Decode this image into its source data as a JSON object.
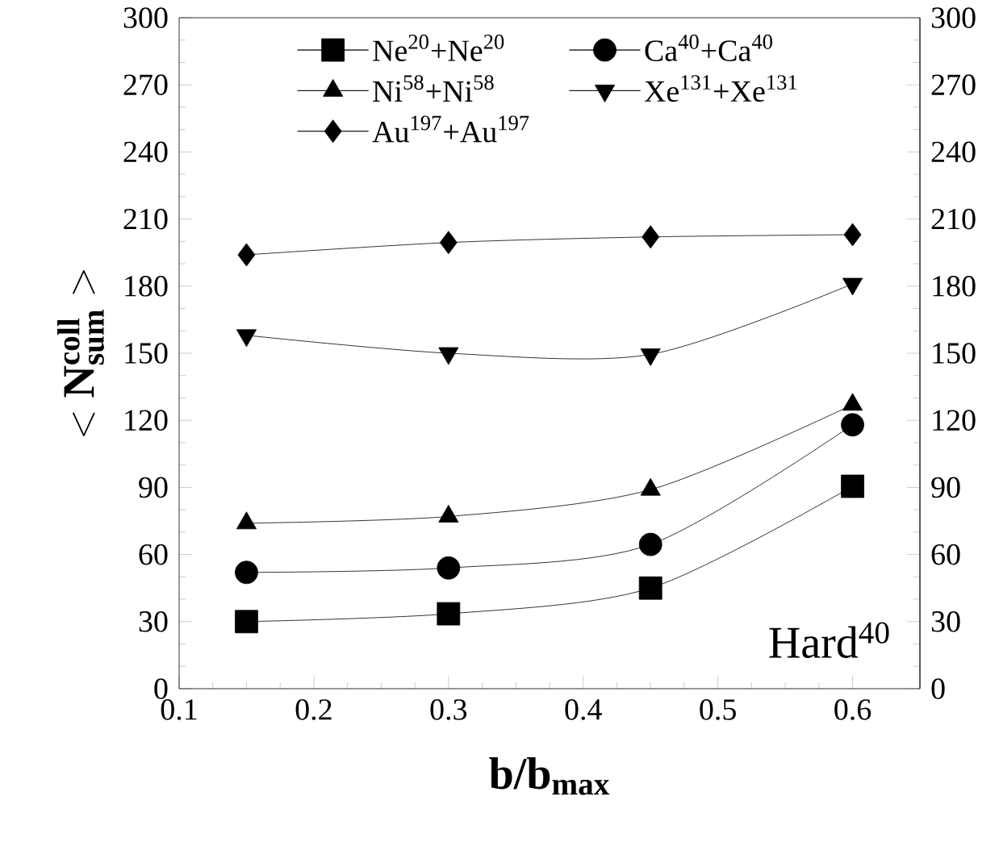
{
  "chart_data": {
    "type": "line",
    "xlabel": "b/b$_{max}$",
    "ylabel": "<\\mathbf{N}^{\\mathbf{coll}}_{\\mathbf{sum}}>",
    "x": [
      0.15,
      0.3,
      0.45,
      0.6
    ],
    "series": [
      {
        "name": "Ne$^{20}$+Ne$^{20}$",
        "color": "#000000",
        "marker": "square",
        "values": [
          30,
          33.5,
          45,
          90.5
        ]
      },
      {
        "name": "Ca$^{40}$+Ca$^{40}$",
        "color": "#000000",
        "marker": "circle",
        "values": [
          52,
          54,
          64.5,
          118
        ]
      },
      {
        "name": "Ni$^{58}$+Ni$^{58}$",
        "color": "#000000",
        "marker": "triangle",
        "values": [
          74,
          77,
          89,
          127
        ]
      },
      {
        "name": "Xe$^{131}$+Xe$^{131}$",
        "color": "#000000",
        "marker": "triangle-down",
        "values": [
          158,
          150,
          149.5,
          181
        ]
      },
      {
        "name": "Au$^{197}$+Au$^{197}$",
        "color": "#000000",
        "marker": "diamond",
        "values": [
          194,
          199.5,
          202,
          203
        ]
      }
    ],
    "xlim": [
      0.1,
      0.65
    ],
    "xticks": [
      0.1,
      0.2,
      0.3,
      0.4,
      0.5,
      0.6
    ],
    "ylim": [
      0,
      300
    ],
    "yticks": [
      0,
      30,
      60,
      90,
      120,
      150,
      180,
      210,
      240,
      270,
      300
    ],
    "y2lim": [
      0,
      300
    ],
    "y2ticks": [
      0,
      30,
      60,
      90,
      120,
      150,
      180,
      210,
      240,
      270,
      300
    ],
    "line_style": "solid",
    "legend": "top",
    "annotations": [
      "Hard$^{40}$"
    ]
  }
}
